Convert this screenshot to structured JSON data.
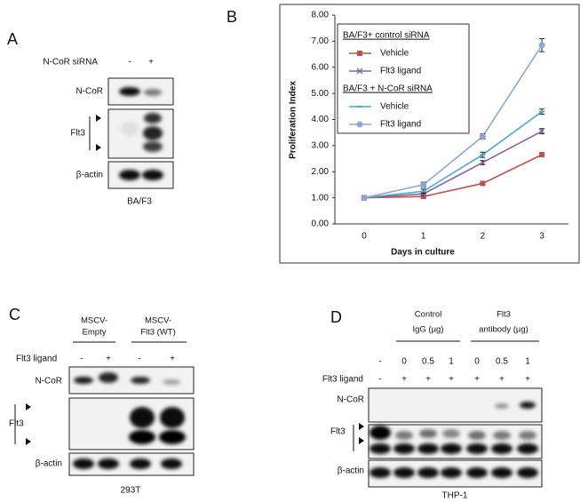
{
  "panel_a": {
    "label": "A",
    "treatment": "N-CoR siRNA",
    "lanes": [
      "-",
      "+"
    ],
    "rows": [
      "N-CoR",
      "Flt3",
      "β-actin"
    ],
    "cell_line": "BA/F3"
  },
  "chart_data": {
    "type": "line",
    "panel_label": "B",
    "x_label": "Days in culture",
    "y_label": "Proliferation Index",
    "categories": [
      "0",
      "1",
      "2",
      "3"
    ],
    "legend_headings": [
      "BA/F3+ control siRNA",
      "BA/F3 + N-CoR siRNA"
    ],
    "series": [
      {
        "name": "Vehicle",
        "color": "#c0504d",
        "marker": "square",
        "values": [
          1.0,
          1.05,
          1.55,
          2.65
        ],
        "errors": [
          0.05,
          0.05,
          0.06,
          0.08
        ]
      },
      {
        "name": "Flt3  ligand",
        "color": "#8064a2",
        "marker": "x",
        "values": [
          1.0,
          1.15,
          2.35,
          3.55
        ],
        "errors": [
          0.05,
          0.06,
          0.08,
          0.1
        ]
      },
      {
        "name": "Vehicle",
        "color": "#4bacc6",
        "marker": "dash",
        "values": [
          1.0,
          1.25,
          2.65,
          4.3
        ],
        "errors": [
          0.05,
          0.08,
          0.1,
          0.1
        ]
      },
      {
        "name": "Flt3  ligand",
        "color": "#8fa5d8",
        "marker": "circle",
        "values": [
          1.0,
          1.5,
          3.35,
          6.85
        ],
        "errors": [
          0.05,
          0.1,
          0.1,
          0.25
        ]
      }
    ],
    "ylim": [
      0,
      8
    ],
    "yticks": [
      {
        "value": 0,
        "label": "0.00"
      },
      {
        "value": 1,
        "label": "1.00"
      },
      {
        "value": 2,
        "label": "2.00"
      },
      {
        "value": 3,
        "label": "3.00"
      },
      {
        "value": 4,
        "label": "4.00"
      },
      {
        "value": 5,
        "label": "5.00"
      },
      {
        "value": 6,
        "label": "6.00"
      },
      {
        "value": 7,
        "label": "7.00"
      },
      {
        "value": 8,
        "label": "8.00"
      }
    ]
  },
  "panel_c": {
    "label": "C",
    "groups": [
      [
        "MSCV-",
        "Empty"
      ],
      [
        "MSCV-",
        "Flt3 (WT)"
      ]
    ],
    "treatment": "Flt3 ligand",
    "lanes": [
      "-",
      "+",
      "-",
      "+"
    ],
    "rows": [
      "N-CoR",
      "Flt3",
      "β-actin"
    ],
    "cell_line": "293T"
  },
  "panel_d": {
    "label": "D",
    "groups": [
      [
        "Control",
        "IgG (µg)"
      ],
      [
        "Flt3",
        "antibody (µg)"
      ]
    ],
    "doses": [
      "-",
      "0",
      "0.5",
      "1",
      "0",
      "0.5",
      "1"
    ],
    "treatment": "Flt3 ligand",
    "ligand": [
      "-",
      "+",
      "+",
      "+",
      "+",
      "+",
      "+"
    ],
    "rows": [
      "N-CoR",
      "Flt3",
      "β-actin"
    ],
    "cell_line": "THP-1"
  }
}
